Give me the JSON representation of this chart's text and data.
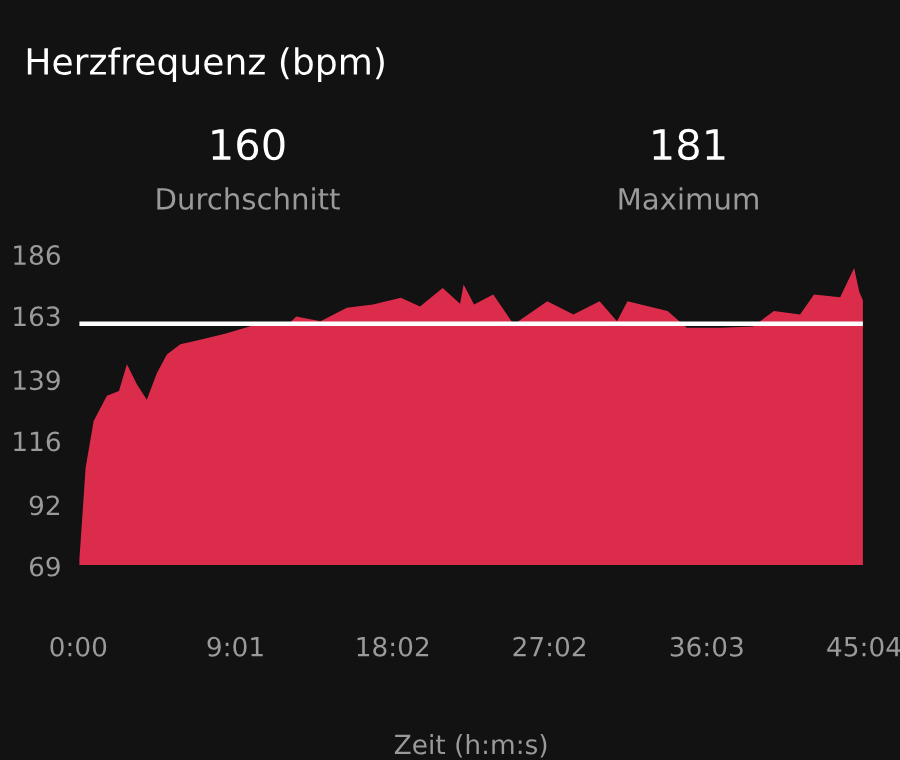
{
  "chart_data": {
    "type": "area",
    "title": "Herzfrequenz (bpm)",
    "xlabel": "Zeit (h:m:s)",
    "annotations": [
      "160",
      "Durchschnitt",
      "181",
      "Maximum"
    ],
    "x": [
      0,
      0.11,
      0.42,
      0.88,
      1.64,
      2.33,
      2.79,
      3.36,
      3.93,
      4.51,
      5.08,
      5.85,
      6.99,
      8.52,
      10.24,
      11.96,
      12.5,
      13.9,
      15.4,
      16.9,
      18.5,
      19.6,
      20.9,
      21.9,
      22.1,
      22.7,
      23.8,
      24.97,
      26.9,
      28.4,
      29.9,
      30.9,
      31.5,
      33.8,
      34.9,
      36.8,
      38.7,
      39.9,
      41.4,
      42.2,
      43.7,
      44.5,
      44.8,
      45.03
    ],
    "series": [
      {
        "color": "#db2c4b",
        "values": [
          69,
          76,
          106,
          123.5,
          133,
          134.8,
          144.8,
          137.3,
          131.5,
          141.5,
          148.5,
          152.3,
          154,
          156.5,
          159.8,
          159.3,
          162.8,
          161,
          166,
          167.3,
          169.8,
          166.5,
          173.5,
          167.5,
          174.8,
          167.3,
          171,
          159.8,
          168.5,
          163.5,
          168.5,
          161,
          168.5,
          164.8,
          158.5,
          158.5,
          159,
          164.8,
          163.5,
          171,
          170,
          181,
          172,
          168.5
        ]
      }
    ],
    "ylim": [
      69,
      186
    ],
    "yticks": [
      69,
      92,
      116,
      139,
      163,
      186
    ],
    "xlim": [
      0,
      45.0667
    ],
    "xticks": [
      {
        "value": 0,
        "label": "0:00"
      },
      {
        "value": 9.0167,
        "label": "9:01"
      },
      {
        "value": 18.0333,
        "label": "18:02"
      },
      {
        "value": 27.0333,
        "label": "27:02"
      },
      {
        "value": 36.05,
        "label": "36:03"
      },
      {
        "value": 45.0667,
        "label": "45:04"
      }
    ],
    "ref_lines": [
      {
        "axis": "y",
        "value": 160,
        "color": "#ffffff"
      }
    ],
    "grid": false,
    "legend": false
  }
}
